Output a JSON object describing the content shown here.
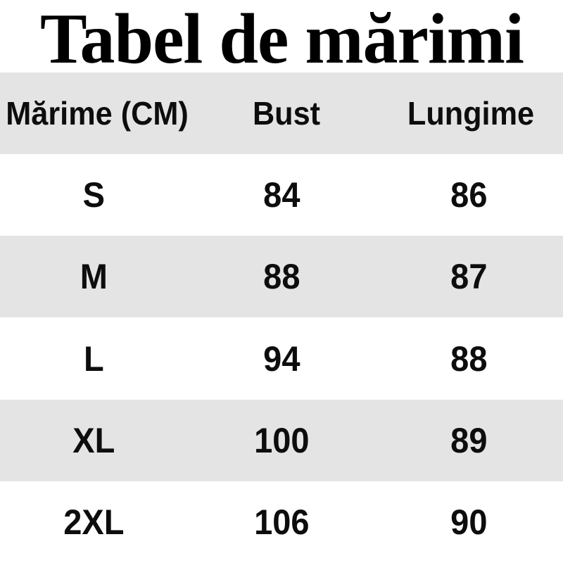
{
  "page": {
    "title": "Tabel de mărimi",
    "background_color": "#ffffff",
    "stripe_color": "#e4e4e4",
    "text_color": "#0d0d0d"
  },
  "chart_data": {
    "type": "table",
    "title": "Tabel de mărimi",
    "columns": [
      "Mărime (CM)",
      "Bust",
      "Lungime"
    ],
    "rows": [
      [
        "S",
        "84",
        "86"
      ],
      [
        "M",
        "88",
        "87"
      ],
      [
        "L",
        "94",
        "88"
      ],
      [
        "XL",
        "100",
        "89"
      ],
      [
        "2XL",
        "106",
        "90"
      ]
    ],
    "layout": {
      "striped": true,
      "stripe_pattern": "header row and alternating data rows shaded light gray",
      "column_alignment": "center",
      "row_count": 5,
      "column_count": 3
    }
  }
}
